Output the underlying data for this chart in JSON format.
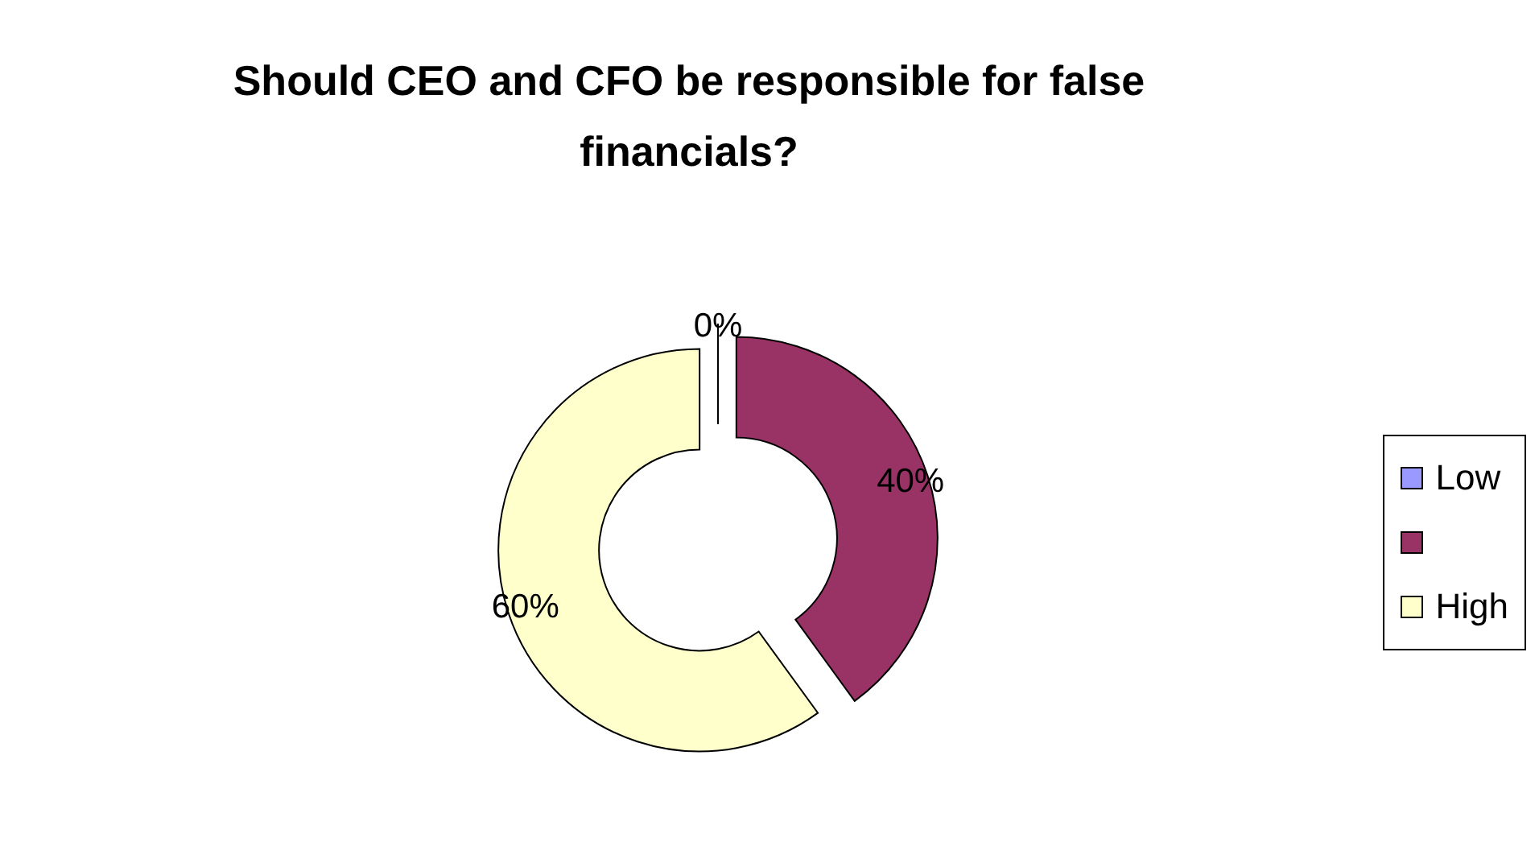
{
  "chart_data": {
    "type": "donut",
    "title": "Should CEO and CFO be responsible for false financials?",
    "categories": [
      "Low",
      null,
      "High"
    ],
    "values": [
      0,
      40,
      60
    ],
    "value_labels": [
      "0%",
      "40%",
      "60%"
    ],
    "colors": [
      "#9999ff",
      "#993366",
      "#ffffcc"
    ],
    "legend": "right"
  }
}
